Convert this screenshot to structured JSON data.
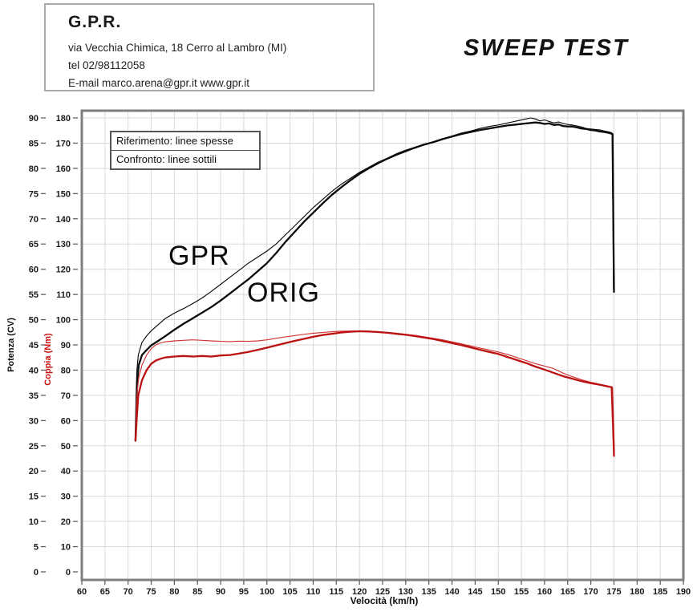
{
  "header": {
    "company": "G.P.R.",
    "address": "via Vecchia Chimica, 18 Cerro al Lambro (MI)",
    "phone": "tel 02/98112058",
    "email_line": "E-mail marco.arena@gpr.it  www.gpr.it"
  },
  "title": "SWEEP TEST",
  "legend": {
    "reference": "Riferimento: linee spesse",
    "comparison": "Confronto: linee sottili"
  },
  "annotations": {
    "gpr": "GPR",
    "orig": "ORIG"
  },
  "axes": {
    "x": {
      "label": "Velocità (km/h)",
      "min": 60,
      "max": 190,
      "step": 5
    },
    "y_power": {
      "label": "Potenza (CV)",
      "min": 0,
      "max": 90,
      "step": 5
    },
    "y_torque": {
      "label": "Coppia (Nm)",
      "min": 0,
      "max": 180,
      "step": 10
    }
  },
  "colors": {
    "power_line": "#0a0a0a",
    "torque_thick": "#bb1111",
    "torque_thin": "#d23434",
    "grid": "#d9d9d9",
    "frame": "#7f7f7f",
    "tick_text": "#1a1a1a",
    "tick_mark": "#555555"
  },
  "chart_data": {
    "type": "line",
    "title": "SWEEP TEST",
    "xlabel": "Velocità (km/h)",
    "ylabel_left_power": "Potenza (CV)",
    "ylabel_left_torque": "Coppia (Nm)",
    "xlim": [
      60,
      190
    ],
    "ylim_power": [
      0,
      90
    ],
    "ylim_torque": [
      0,
      180
    ],
    "grid": true,
    "legend_entries": [
      "Riferimento: linee spesse (ORIG)",
      "Confronto: linee sottili (GPR)"
    ],
    "series": [
      {
        "name": "GPR Potenza (CV)",
        "axis": "power",
        "style": "thin",
        "color": "#0a0a0a",
        "points": [
          [
            71.6,
            26
          ],
          [
            71.7,
            34
          ],
          [
            71.9,
            40
          ],
          [
            72.2,
            43
          ],
          [
            73,
            45.5
          ],
          [
            74,
            46.8
          ],
          [
            75,
            47.8
          ],
          [
            76.5,
            49
          ],
          [
            78,
            50.2
          ],
          [
            80,
            51.3
          ],
          [
            82,
            52.2
          ],
          [
            84,
            53.2
          ],
          [
            86,
            54.3
          ],
          [
            88,
            55.6
          ],
          [
            90,
            57
          ],
          [
            92,
            58.4
          ],
          [
            94,
            59.8
          ],
          [
            96,
            61.2
          ],
          [
            98,
            62.4
          ],
          [
            100,
            63.6
          ],
          [
            102,
            65
          ],
          [
            104,
            66.8
          ],
          [
            106,
            68.6
          ],
          [
            108,
            70.4
          ],
          [
            110,
            72.2
          ],
          [
            112,
            73.8
          ],
          [
            114,
            75.4
          ],
          [
            116,
            76.8
          ],
          [
            118,
            78
          ],
          [
            120,
            79.2
          ],
          [
            122,
            80.2
          ],
          [
            124,
            81.2
          ],
          [
            126,
            82
          ],
          [
            128,
            82.9
          ],
          [
            130,
            83.6
          ],
          [
            132,
            84.2
          ],
          [
            134,
            84.8
          ],
          [
            136,
            85.3
          ],
          [
            138,
            85.9
          ],
          [
            140,
            86.4
          ],
          [
            142,
            87
          ],
          [
            144,
            87.4
          ],
          [
            146,
            87.9
          ],
          [
            148,
            88.3
          ],
          [
            150,
            88.6
          ],
          [
            152,
            89
          ],
          [
            154,
            89.4
          ],
          [
            156,
            89.8
          ],
          [
            157,
            90
          ],
          [
            158,
            89.8
          ],
          [
            159,
            89.4
          ],
          [
            160,
            89.6
          ],
          [
            161,
            89.3
          ],
          [
            162,
            89
          ],
          [
            163,
            89.2
          ],
          [
            164,
            88.9
          ],
          [
            165,
            88.7
          ],
          [
            166,
            88.6
          ],
          [
            167,
            88.4
          ],
          [
            168,
            88.2
          ],
          [
            169,
            87.9
          ],
          [
            170,
            87.8
          ],
          [
            171,
            87.7
          ],
          [
            172,
            87.6
          ],
          [
            173,
            87.4
          ],
          [
            174,
            87.2
          ],
          [
            174.6,
            87
          ],
          [
            174.8,
            70
          ],
          [
            174.9,
            56
          ]
        ]
      },
      {
        "name": "ORIG Potenza (CV)",
        "axis": "power",
        "style": "thick",
        "color": "#0a0a0a",
        "points": [
          [
            71.6,
            26
          ],
          [
            71.8,
            33
          ],
          [
            72,
            38
          ],
          [
            72.3,
            41
          ],
          [
            73,
            43
          ],
          [
            74,
            44
          ],
          [
            75,
            44.9
          ],
          [
            76.5,
            45.8
          ],
          [
            78,
            46.7
          ],
          [
            80,
            48
          ],
          [
            82,
            49.2
          ],
          [
            84,
            50.3
          ],
          [
            86,
            51.4
          ],
          [
            88,
            52.5
          ],
          [
            90,
            53.8
          ],
          [
            92,
            55.2
          ],
          [
            94,
            56.6
          ],
          [
            96,
            58
          ],
          [
            98,
            59.6
          ],
          [
            100,
            61.2
          ],
          [
            102,
            63.2
          ],
          [
            104,
            65.4
          ],
          [
            106,
            67.4
          ],
          [
            108,
            69.4
          ],
          [
            110,
            71.2
          ],
          [
            112,
            73
          ],
          [
            114,
            74.7
          ],
          [
            116,
            76.2
          ],
          [
            118,
            77.6
          ],
          [
            120,
            78.9
          ],
          [
            122,
            80
          ],
          [
            124,
            81
          ],
          [
            126,
            81.9
          ],
          [
            128,
            82.7
          ],
          [
            130,
            83.4
          ],
          [
            132,
            84.1
          ],
          [
            134,
            84.7
          ],
          [
            136,
            85.2
          ],
          [
            138,
            85.8
          ],
          [
            140,
            86.3
          ],
          [
            142,
            86.8
          ],
          [
            144,
            87.2
          ],
          [
            146,
            87.6
          ],
          [
            148,
            87.9
          ],
          [
            150,
            88.2
          ],
          [
            152,
            88.5
          ],
          [
            154,
            88.7
          ],
          [
            156,
            88.9
          ],
          [
            158,
            89.1
          ],
          [
            159,
            89
          ],
          [
            160,
            88.8
          ],
          [
            161,
            88.9
          ],
          [
            162,
            88.6
          ],
          [
            163,
            88.7
          ],
          [
            164,
            88.4
          ],
          [
            165,
            88.3
          ],
          [
            166,
            88.3
          ],
          [
            167,
            88.1
          ],
          [
            168,
            87.9
          ],
          [
            169,
            87.8
          ],
          [
            170,
            87.6
          ],
          [
            171,
            87.5
          ],
          [
            172,
            87.3
          ],
          [
            173,
            87.2
          ],
          [
            174,
            87
          ],
          [
            174.7,
            86.8
          ],
          [
            174.9,
            65
          ],
          [
            175,
            55.5
          ]
        ]
      },
      {
        "name": "GPR Coppia (Nm)",
        "axis": "torque",
        "style": "thin",
        "color": "#d23434",
        "points": [
          [
            71.6,
            52
          ],
          [
            71.8,
            66
          ],
          [
            72,
            72
          ],
          [
            72.3,
            77
          ],
          [
            73,
            82
          ],
          [
            74,
            86
          ],
          [
            75,
            88.5
          ],
          [
            76,
            90
          ],
          [
            77,
            90.8
          ],
          [
            78,
            91.2
          ],
          [
            80,
            91.6
          ],
          [
            82,
            91.8
          ],
          [
            84,
            92
          ],
          [
            86,
            91.8
          ],
          [
            88,
            91.6
          ],
          [
            90,
            91.4
          ],
          [
            92,
            91.3
          ],
          [
            94,
            91.5
          ],
          [
            96,
            91.4
          ],
          [
            98,
            91.6
          ],
          [
            100,
            92
          ],
          [
            102,
            92.6
          ],
          [
            104,
            93.2
          ],
          [
            106,
            93.7
          ],
          [
            108,
            94.2
          ],
          [
            110,
            94.6
          ],
          [
            112,
            94.9
          ],
          [
            114,
            95.2
          ],
          [
            116,
            95.4
          ],
          [
            118,
            95.5
          ],
          [
            120,
            95.5
          ],
          [
            122,
            95.4
          ],
          [
            124,
            95.2
          ],
          [
            126,
            95
          ],
          [
            128,
            94.6
          ],
          [
            130,
            94.2
          ],
          [
            132,
            93.8
          ],
          [
            134,
            93.2
          ],
          [
            136,
            92.6
          ],
          [
            138,
            92
          ],
          [
            140,
            91.2
          ],
          [
            142,
            90.4
          ],
          [
            144,
            89.6
          ],
          [
            146,
            88.8
          ],
          [
            148,
            88
          ],
          [
            150,
            87.2
          ],
          [
            152,
            86.2
          ],
          [
            154,
            85
          ],
          [
            156,
            83.8
          ],
          [
            158,
            82.6
          ],
          [
            160,
            81.6
          ],
          [
            162,
            80.6
          ],
          [
            164,
            78.8
          ],
          [
            166,
            77.4
          ],
          [
            168,
            76.2
          ],
          [
            170,
            75.2
          ],
          [
            172,
            74.4
          ],
          [
            173.5,
            73.8
          ],
          [
            174.7,
            73.2
          ],
          [
            174.9,
            60
          ],
          [
            175.1,
            48
          ]
        ]
      },
      {
        "name": "ORIG Coppia (Nm)",
        "axis": "torque",
        "style": "thick",
        "color": "#bb1111",
        "points": [
          [
            71.6,
            52
          ],
          [
            71.9,
            62
          ],
          [
            72.2,
            70
          ],
          [
            73,
            76
          ],
          [
            74,
            80
          ],
          [
            75,
            82.5
          ],
          [
            76,
            83.8
          ],
          [
            77,
            84.5
          ],
          [
            78,
            85
          ],
          [
            80,
            85.4
          ],
          [
            82,
            85.6
          ],
          [
            84,
            85.4
          ],
          [
            86,
            85.6
          ],
          [
            88,
            85.4
          ],
          [
            90,
            85.8
          ],
          [
            92,
            86
          ],
          [
            94,
            86.6
          ],
          [
            96,
            87.2
          ],
          [
            98,
            88
          ],
          [
            100,
            88.9
          ],
          [
            102,
            89.8
          ],
          [
            104,
            90.7
          ],
          [
            106,
            91.6
          ],
          [
            108,
            92.4
          ],
          [
            110,
            93.2
          ],
          [
            112,
            93.9
          ],
          [
            114,
            94.4
          ],
          [
            116,
            94.9
          ],
          [
            118,
            95.2
          ],
          [
            120,
            95.4
          ],
          [
            122,
            95.3
          ],
          [
            124,
            95.1
          ],
          [
            126,
            94.8
          ],
          [
            128,
            94.4
          ],
          [
            130,
            94
          ],
          [
            132,
            93.5
          ],
          [
            134,
            92.9
          ],
          [
            136,
            92.3
          ],
          [
            138,
            91.5
          ],
          [
            140,
            90.7
          ],
          [
            142,
            89.9
          ],
          [
            144,
            89
          ],
          [
            146,
            88.1
          ],
          [
            148,
            87.2
          ],
          [
            150,
            86.4
          ],
          [
            152,
            85.2
          ],
          [
            154,
            84
          ],
          [
            156,
            82.8
          ],
          [
            158,
            81.4
          ],
          [
            160,
            80.2
          ],
          [
            162,
            78.9
          ],
          [
            164,
            77.6
          ],
          [
            166,
            76.6
          ],
          [
            168,
            75.6
          ],
          [
            170,
            74.8
          ],
          [
            172,
            74.2
          ],
          [
            173.5,
            73.6
          ],
          [
            174.5,
            73.2
          ],
          [
            174.8,
            58
          ],
          [
            175,
            46
          ]
        ]
      }
    ]
  }
}
